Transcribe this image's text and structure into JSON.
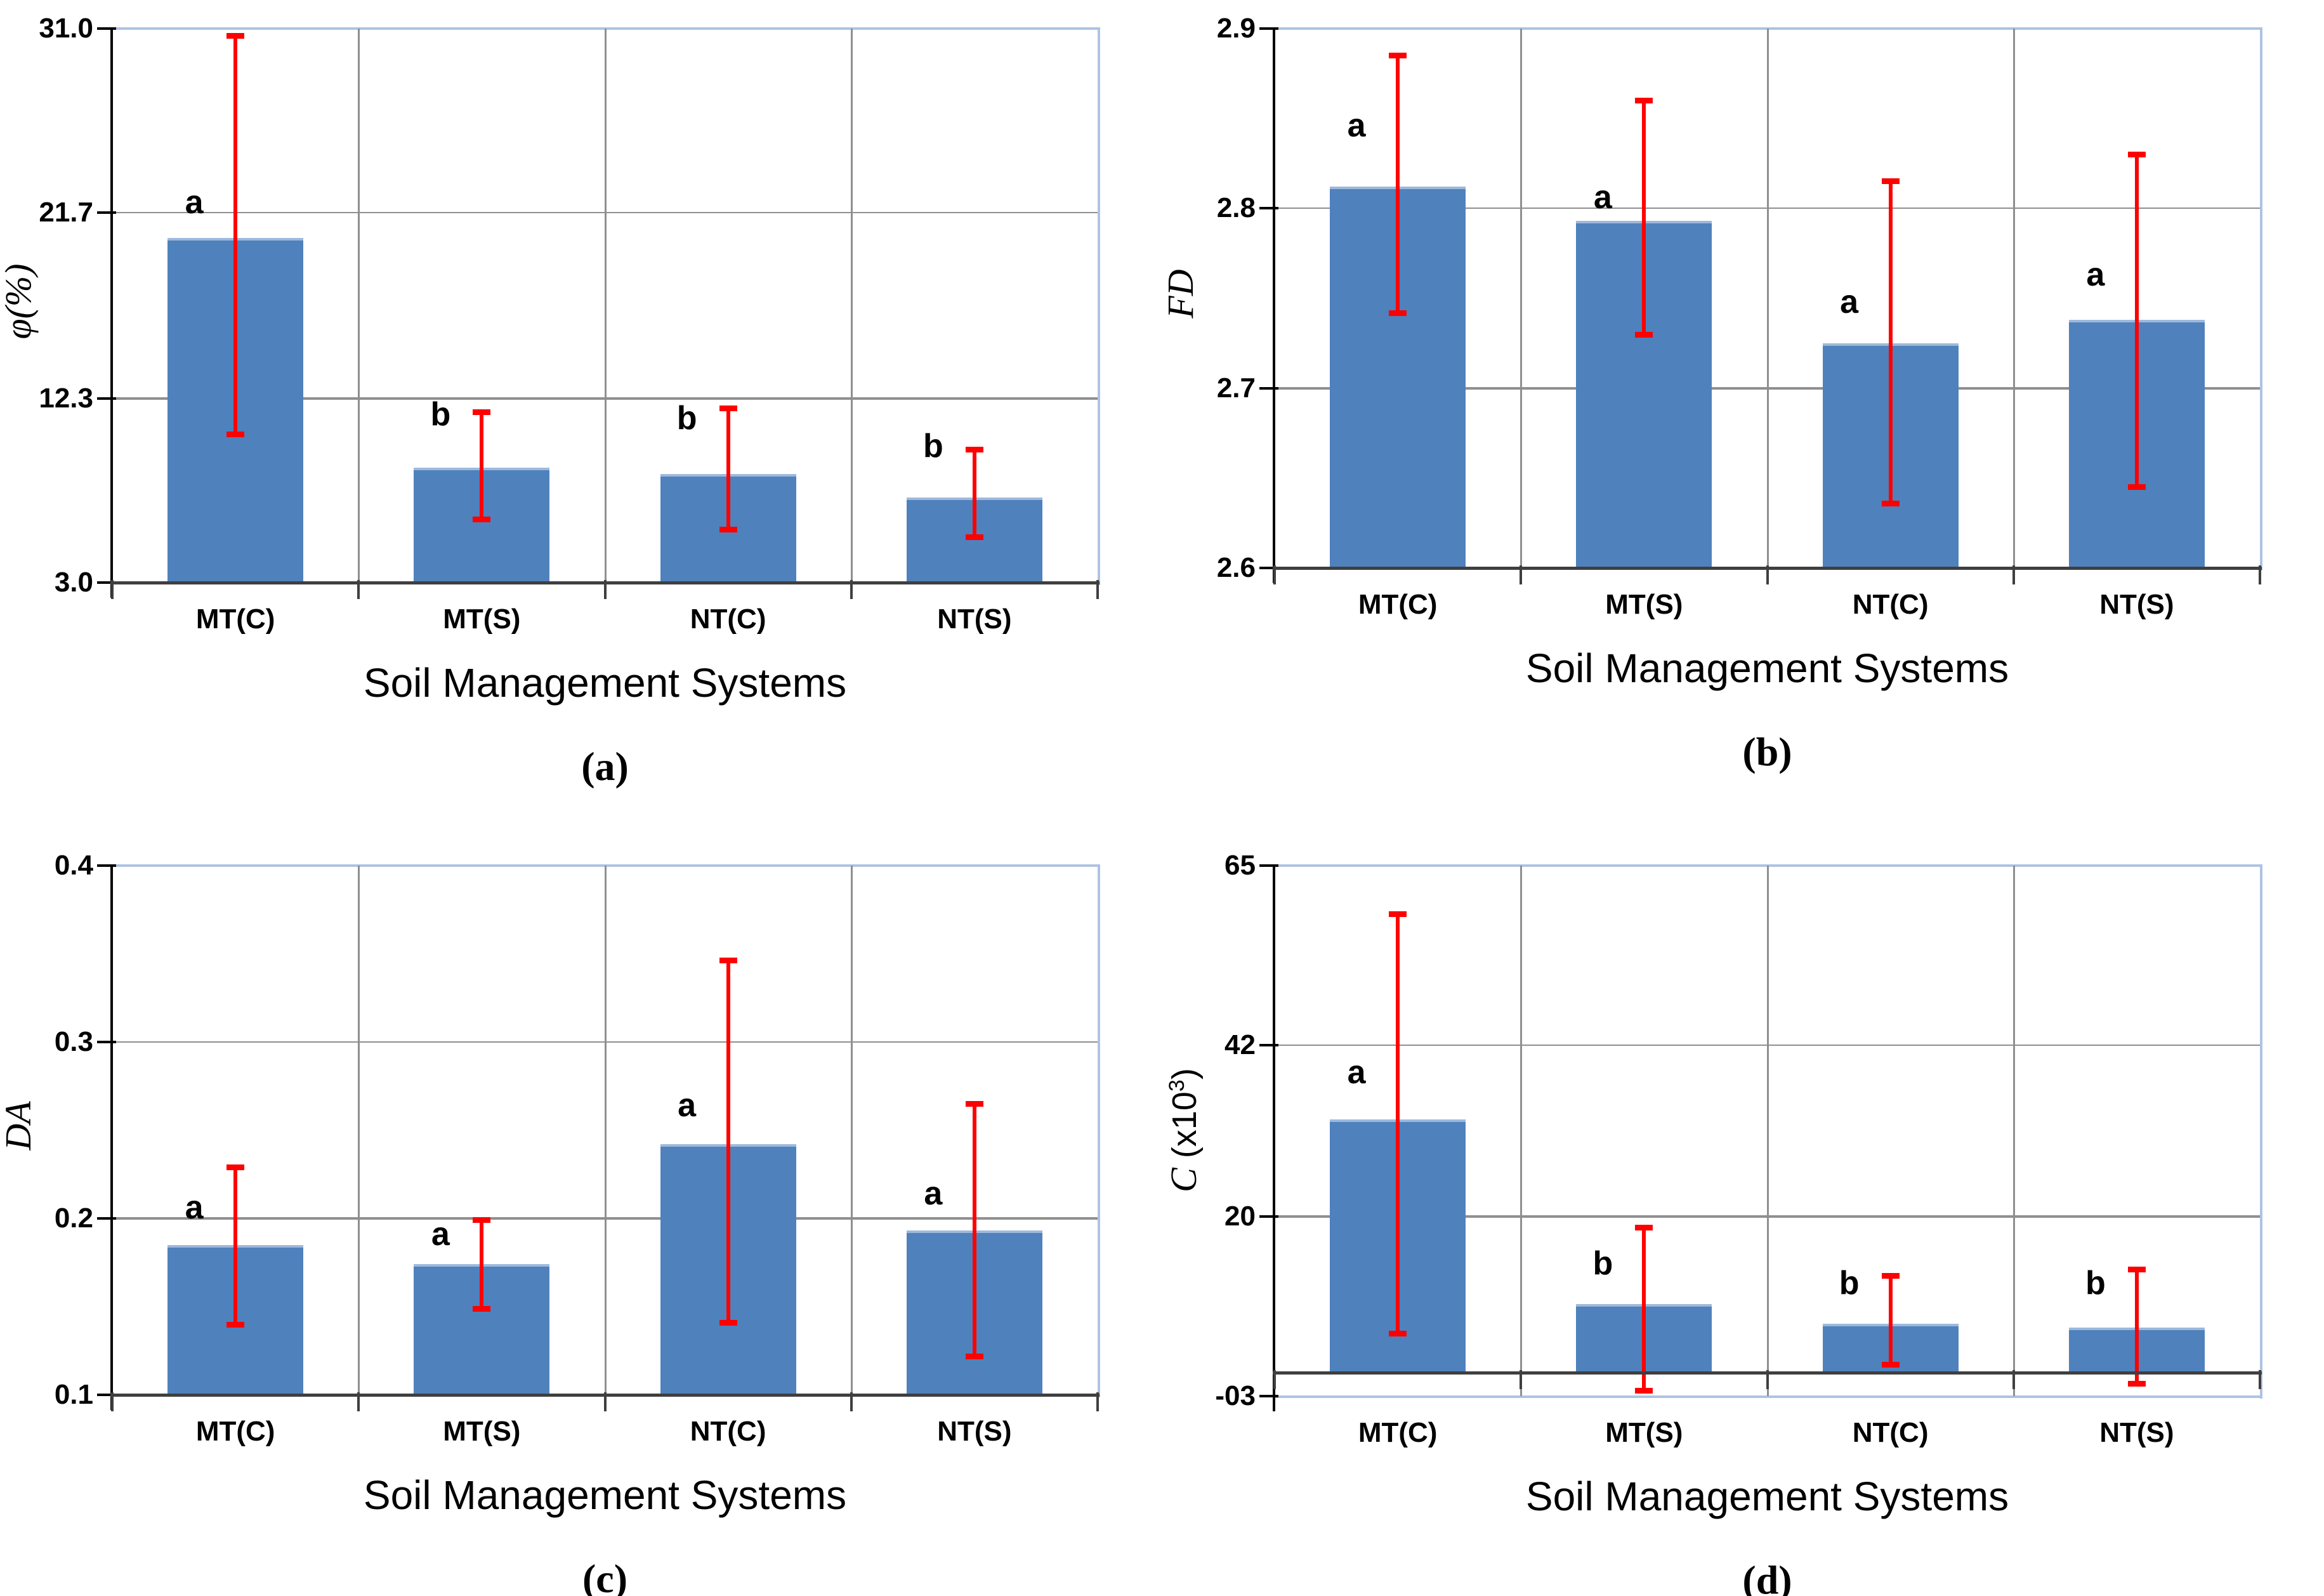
{
  "figure": {
    "type": "multi-panel-bar-figure",
    "colors": {
      "bar_fill": "#4F81BD",
      "bar_top_edge": "#9DB9DC",
      "error_bar": "#FF0000",
      "gridline": "#8F8F8F",
      "plot_border": "#AEC3E2",
      "category_axis": "#3F3F3F",
      "y_axis": "#000000",
      "text": "#000000"
    }
  },
  "chart_data": [
    {
      "type": "bar",
      "panel_letter": "(a)",
      "ylabel": "φ(%)",
      "ylabel_prefix": "φ(%)",
      "ylabel_mid": "",
      "ylabel_sup": "",
      "ylabel_suffix": "",
      "xlabel": "Soil Management Systems",
      "categories": [
        "MT(C)",
        "MT(S)",
        "NT(C)",
        "NT(S)"
      ],
      "ymin": 3.0,
      "ymax": 31.0,
      "baseline": 3.0,
      "grid": true,
      "legend": "none",
      "yticks": [
        {
          "label": "3.0",
          "value": 3.0
        },
        {
          "label": "12.3",
          "value": 12.3
        },
        {
          "label": "21.7",
          "value": 21.7
        },
        {
          "label": "31.0",
          "value": 31.0
        }
      ],
      "bars": [
        {
          "category": "MT(C)",
          "value": 20.4,
          "err_low": 10.4,
          "err_high": 30.7,
          "sig": "a",
          "sig_y": 22.2
        },
        {
          "category": "MT(S)",
          "value": 8.8,
          "err_low": 6.1,
          "err_high": 11.7,
          "sig": "b",
          "sig_y": 11.5
        },
        {
          "category": "NT(C)",
          "value": 8.5,
          "err_low": 5.6,
          "err_high": 11.9,
          "sig": "b",
          "sig_y": 11.3
        },
        {
          "category": "NT(S)",
          "value": 7.3,
          "err_low": 5.2,
          "err_high": 9.8,
          "sig": "b",
          "sig_y": 9.9
        }
      ]
    },
    {
      "type": "bar",
      "panel_letter": "(b)",
      "ylabel": "FD",
      "ylabel_prefix": "FD",
      "ylabel_mid": "",
      "ylabel_sup": "",
      "ylabel_suffix": "",
      "xlabel": "Soil Management Systems",
      "categories": [
        "MT(C)",
        "MT(S)",
        "NT(C)",
        "NT(S)"
      ],
      "ymin": 2.6,
      "ymax": 2.9,
      "baseline": 2.6,
      "grid": true,
      "legend": "none",
      "yticks": [
        {
          "label": "2.6",
          "value": 2.6
        },
        {
          "label": "2.7",
          "value": 2.7
        },
        {
          "label": "2.8",
          "value": 2.8
        },
        {
          "label": "2.9",
          "value": 2.9
        }
      ],
      "bars": [
        {
          "category": "MT(C)",
          "value": 2.812,
          "err_low": 2.741,
          "err_high": 2.886,
          "sig": "a",
          "sig_y": 2.846
        },
        {
          "category": "MT(S)",
          "value": 2.793,
          "err_low": 2.729,
          "err_high": 2.861,
          "sig": "a",
          "sig_y": 2.806
        },
        {
          "category": "NT(C)",
          "value": 2.725,
          "err_low": 2.635,
          "err_high": 2.816,
          "sig": "a",
          "sig_y": 2.748
        },
        {
          "category": "NT(S)",
          "value": 2.738,
          "err_low": 2.644,
          "err_high": 2.831,
          "sig": "a",
          "sig_y": 2.763
        }
      ]
    },
    {
      "type": "bar",
      "panel_letter": "(c)",
      "ylabel": "DA",
      "ylabel_prefix": "DA",
      "ylabel_mid": "",
      "ylabel_sup": "",
      "ylabel_suffix": "",
      "xlabel": "Soil Management Systems",
      "categories": [
        "MT(C)",
        "MT(S)",
        "NT(C)",
        "NT(S)"
      ],
      "ymin": 0.1,
      "ymax": 0.4,
      "baseline": 0.1,
      "grid": true,
      "legend": "none",
      "yticks": [
        {
          "label": "0.1",
          "value": 0.1
        },
        {
          "label": "0.2",
          "value": 0.2
        },
        {
          "label": "0.3",
          "value": 0.3
        },
        {
          "label": "0.4",
          "value": 0.4
        }
      ],
      "bars": [
        {
          "category": "MT(C)",
          "value": 0.185,
          "err_low": 0.139,
          "err_high": 0.23,
          "sig": "a",
          "sig_y": 0.206
        },
        {
          "category": "MT(S)",
          "value": 0.174,
          "err_low": 0.148,
          "err_high": 0.2,
          "sig": "a",
          "sig_y": 0.191
        },
        {
          "category": "NT(C)",
          "value": 0.242,
          "err_low": 0.14,
          "err_high": 0.347,
          "sig": "a",
          "sig_y": 0.264
        },
        {
          "category": "NT(S)",
          "value": 0.193,
          "err_low": 0.121,
          "err_high": 0.266,
          "sig": "a",
          "sig_y": 0.214
        }
      ]
    },
    {
      "type": "bar",
      "panel_letter": "(d)",
      "ylabel": "C (x10³)",
      "ylabel_prefix": "C",
      "ylabel_mid": " (x10",
      "ylabel_sup": "3",
      "ylabel_suffix": ")",
      "xlabel": "Soil Management Systems",
      "categories": [
        "MT(C)",
        "MT(S)",
        "NT(C)",
        "NT(S)"
      ],
      "ymin": -3,
      "ymax": 65,
      "baseline": 0,
      "grid": true,
      "legend": "none",
      "yticks": [
        {
          "label": "-03",
          "value": -3
        },
        {
          "label": "20",
          "value": 20
        },
        {
          "label": "42",
          "value": 42
        },
        {
          "label": "65",
          "value": 65
        }
      ],
      "bars": [
        {
          "category": "MT(C)",
          "value": 32.5,
          "err_low": 4.8,
          "err_high": 59.0,
          "sig": "a",
          "sig_y": 38.5
        },
        {
          "category": "MT(S)",
          "value": 8.8,
          "err_low": -2.5,
          "err_high": 18.8,
          "sig": "b",
          "sig_y": 14.0
        },
        {
          "category": "NT(C)",
          "value": 6.3,
          "err_low": 0.8,
          "err_high": 12.6,
          "sig": "b",
          "sig_y": 11.5
        },
        {
          "category": "NT(S)",
          "value": 5.8,
          "err_low": -1.6,
          "err_high": 13.4,
          "sig": "b",
          "sig_y": 11.5
        }
      ]
    }
  ]
}
